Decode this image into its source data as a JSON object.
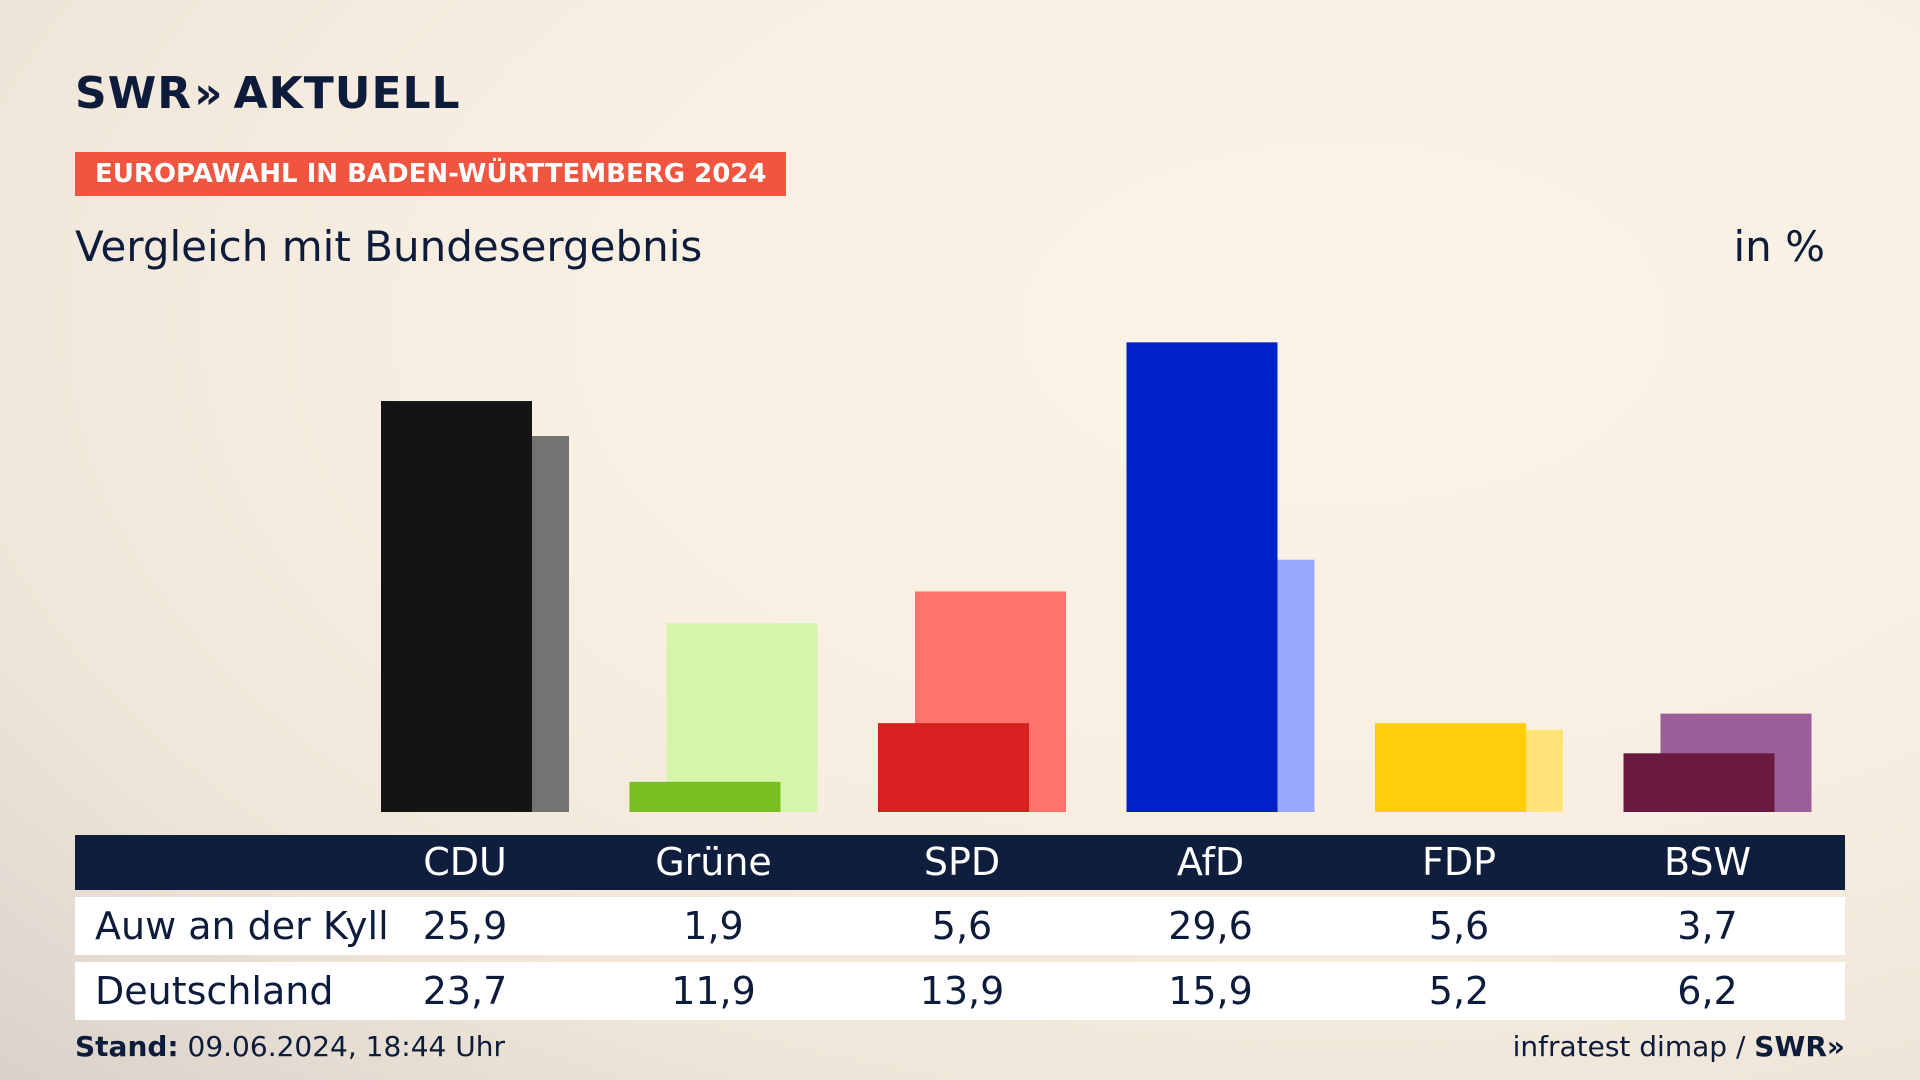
{
  "brand": {
    "logo_text": "SWR",
    "logo_suffix": "AKTUELL",
    "chevrons": "»"
  },
  "header": {
    "badge": "EUROPAWAHL IN BADEN-WÜRTTEMBERG 2024",
    "subtitle": "Vergleich mit Bundesergebnis",
    "unit": "in %"
  },
  "chart_data": {
    "type": "bar",
    "title": "Vergleich mit Bundesergebnis",
    "ylabel": "in %",
    "ylim": [
      0,
      30
    ],
    "grid": false,
    "categories": [
      "CDU",
      "Grüne",
      "SPD",
      "AfD",
      "FDP",
      "BSW"
    ],
    "series": [
      {
        "name": "Auw an der Kyll",
        "values": [
          25.9,
          1.9,
          5.6,
          29.6,
          5.6,
          3.7
        ]
      },
      {
        "name": "Deutschland",
        "values": [
          23.7,
          11.9,
          13.9,
          15.9,
          5.2,
          6.2
        ]
      }
    ],
    "colors": {
      "local": [
        "#141414",
        "#78be20",
        "#d7201f",
        "#0020c8",
        "#ffcd0a",
        "#6a1a40"
      ],
      "national": [
        "#737373",
        "#d6f5ab",
        "#ff736c",
        "#9aa8ff",
        "#ffe278",
        "#9c5e98"
      ]
    }
  },
  "table": {
    "headers": [
      "CDU",
      "Grüne",
      "SPD",
      "AfD",
      "FDP",
      "BSW"
    ],
    "rows": [
      {
        "label": "Auw an der Kyll",
        "values": [
          "25,9",
          "1,9",
          "5,6",
          "29,6",
          "5,6",
          "3,7"
        ]
      },
      {
        "label": "Deutschland",
        "values": [
          "23,7",
          "11,9",
          "13,9",
          "15,9",
          "5,2",
          "6,2"
        ]
      }
    ]
  },
  "footer": {
    "stand_label": "Stand:",
    "stand_value": "09.06.2024, 18:44 Uhr",
    "source": "infratest dimap /",
    "source_logo": "SWR»"
  }
}
